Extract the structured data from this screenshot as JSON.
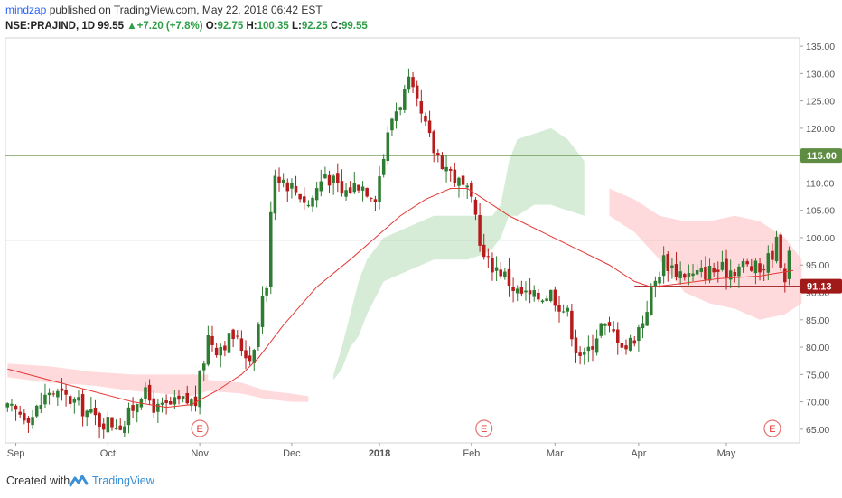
{
  "header": {
    "author": "mindzap",
    "published_text": " published on TradingView.com, May 22, 2018 06:42 EST"
  },
  "quote": {
    "symbol": "NSE:PRAJIND, 1D",
    "last": "99.55",
    "change": "+7.20 (+7.8%)",
    "o_label": "O:",
    "o": "92.75",
    "h_label": "H:",
    "h": "100.35",
    "l_label": "L:",
    "l": "92.25",
    "c_label": "C:",
    "c": "99.55"
  },
  "footer": {
    "created_with": "Created with",
    "brand": "TradingView"
  },
  "colors": {
    "up": "#2e7d32",
    "down": "#b71c1c",
    "ma": "#e53935",
    "cloud_green": "#c8e6c9",
    "cloud_red": "#ffcdd2",
    "level_line": "#5e8c42",
    "price_tag": "#a11a1a"
  },
  "chart_data": {
    "type": "candlestick",
    "y_range": [
      62.5,
      136.5
    ],
    "y_ticks": [
      "135.00",
      "130.00",
      "125.00",
      "120.00",
      "115.00",
      "110.00",
      "105.00",
      "100.00",
      "95.00",
      "90.00",
      "85.00",
      "80.00",
      "75.00",
      "70.00",
      "65.00"
    ],
    "x_labels": [
      {
        "label": "Sep",
        "bar": 2
      },
      {
        "label": "Oct",
        "bar": 24
      },
      {
        "label": "Nov",
        "bar": 46
      },
      {
        "label": "Dec",
        "bar": 68
      },
      {
        "label": "2018",
        "bar": 89
      },
      {
        "label": "Feb",
        "bar": 111
      },
      {
        "label": "Mar",
        "bar": 131
      },
      {
        "label": "Apr",
        "bar": 151
      },
      {
        "label": "May",
        "bar": 172
      }
    ],
    "earnings_marks": [
      {
        "label": "E",
        "bar": 46
      },
      {
        "label": "E",
        "bar": 114
      },
      {
        "label": "E",
        "bar": 183
      }
    ],
    "horizontal_level": {
      "value": 115.0,
      "label": "115.00"
    },
    "last_price_line": {
      "value": 99.55
    },
    "current_tag": {
      "value": 91.13,
      "label": "91.13"
    },
    "anchors": [
      [
        0,
        68.5
      ],
      [
        6,
        67.5
      ],
      [
        10,
        72
      ],
      [
        16,
        70
      ],
      [
        22,
        66.5
      ],
      [
        28,
        66
      ],
      [
        32,
        72
      ],
      [
        36,
        68.5
      ],
      [
        42,
        70
      ],
      [
        45,
        70
      ],
      [
        46,
        74
      ],
      [
        48,
        82
      ],
      [
        50,
        80
      ],
      [
        54,
        82
      ],
      [
        58,
        78
      ],
      [
        60,
        84
      ],
      [
        61,
        90
      ],
      [
        62,
        90
      ],
      [
        63,
        106
      ],
      [
        64,
        112
      ],
      [
        70,
        108
      ],
      [
        72,
        106
      ],
      [
        76,
        112
      ],
      [
        80,
        108
      ],
      [
        84,
        110
      ],
      [
        88,
        108
      ],
      [
        92,
        122
      ],
      [
        96,
        128
      ],
      [
        98,
        124
      ],
      [
        100,
        120
      ],
      [
        102,
        116
      ],
      [
        106,
        112
      ],
      [
        110,
        108
      ],
      [
        112,
        104
      ],
      [
        114,
        96
      ],
      [
        118,
        94
      ],
      [
        122,
        90
      ],
      [
        126,
        89
      ],
      [
        130,
        90
      ],
      [
        134,
        86
      ],
      [
        136,
        80
      ],
      [
        138,
        78
      ],
      [
        142,
        84
      ],
      [
        146,
        82
      ],
      [
        148,
        80
      ],
      [
        150,
        82
      ],
      [
        152,
        85
      ],
      [
        154,
        90
      ],
      [
        157,
        96
      ],
      [
        160,
        94
      ],
      [
        164,
        93
      ],
      [
        168,
        94
      ],
      [
        172,
        94
      ],
      [
        176,
        95
      ],
      [
        180,
        94
      ],
      [
        182,
        96
      ],
      [
        184,
        99
      ],
      [
        186,
        93
      ],
      [
        188,
        99.55
      ]
    ],
    "moving_average": [
      [
        0,
        76
      ],
      [
        10,
        74
      ],
      [
        20,
        72
      ],
      [
        30,
        70
      ],
      [
        38,
        69
      ],
      [
        44,
        69.5
      ],
      [
        50,
        72
      ],
      [
        56,
        75
      ],
      [
        60,
        78
      ],
      [
        66,
        84
      ],
      [
        74,
        91
      ],
      [
        82,
        96
      ],
      [
        88,
        100
      ],
      [
        94,
        104
      ],
      [
        100,
        107
      ],
      [
        106,
        109
      ],
      [
        110,
        109
      ],
      [
        114,
        107
      ],
      [
        120,
        104
      ],
      [
        128,
        101
      ],
      [
        136,
        98
      ],
      [
        144,
        95
      ],
      [
        150,
        92
      ],
      [
        154,
        91
      ],
      [
        160,
        91.5
      ],
      [
        170,
        92.5
      ],
      [
        180,
        93
      ],
      [
        188,
        94
      ]
    ],
    "cloud_bands": [
      {
        "color": "cloud_red",
        "upper": [
          [
            0,
            77
          ],
          [
            10,
            76.5
          ],
          [
            20,
            75.5
          ],
          [
            30,
            75
          ],
          [
            44,
            75
          ],
          [
            48,
            75
          ],
          [
            48,
            75
          ]
        ],
        "lower": [
          [
            0,
            74.5
          ],
          [
            10,
            73.5
          ],
          [
            20,
            73
          ],
          [
            30,
            72
          ],
          [
            44,
            71
          ],
          [
            48,
            72
          ]
        ]
      },
      {
        "color": "cloud_red",
        "upper": [
          [
            48,
            74
          ],
          [
            56,
            73.5
          ],
          [
            62,
            72
          ],
          [
            68,
            71.5
          ],
          [
            72,
            71
          ]
        ],
        "lower": [
          [
            48,
            72
          ],
          [
            56,
            71.5
          ],
          [
            62,
            70.5
          ],
          [
            68,
            70
          ],
          [
            72,
            70
          ]
        ]
      },
      {
        "color": "cloud_green",
        "upper": [
          [
            78,
            75
          ],
          [
            80,
            80
          ],
          [
            82,
            86
          ],
          [
            84,
            92
          ],
          [
            86,
            96
          ],
          [
            90,
            100
          ],
          [
            96,
            102
          ],
          [
            102,
            104
          ],
          [
            106,
            104
          ],
          [
            110,
            104
          ],
          [
            114,
            104
          ],
          [
            116,
            104
          ],
          [
            118,
            106
          ],
          [
            120,
            114
          ],
          [
            122,
            118
          ],
          [
            126,
            119
          ],
          [
            130,
            120
          ],
          [
            134,
            118
          ],
          [
            138,
            114
          ]
        ],
        "lower": [
          [
            78,
            74
          ],
          [
            80,
            76
          ],
          [
            82,
            80
          ],
          [
            84,
            82
          ],
          [
            86,
            86
          ],
          [
            90,
            92
          ],
          [
            96,
            94
          ],
          [
            102,
            96
          ],
          [
            106,
            96
          ],
          [
            110,
            96
          ],
          [
            114,
            97
          ],
          [
            116,
            98
          ],
          [
            118,
            100
          ],
          [
            120,
            104
          ],
          [
            122,
            104
          ],
          [
            126,
            106
          ],
          [
            130,
            106
          ],
          [
            134,
            105
          ],
          [
            138,
            104
          ]
        ]
      },
      {
        "color": "cloud_red",
        "upper": [
          [
            144,
            109
          ],
          [
            150,
            107
          ],
          [
            156,
            104
          ],
          [
            162,
            103
          ],
          [
            168,
            103
          ],
          [
            174,
            104
          ],
          [
            180,
            103
          ],
          [
            186,
            100
          ],
          [
            190,
            96
          ]
        ],
        "lower": [
          [
            144,
            104
          ],
          [
            150,
            101
          ],
          [
            156,
            96
          ],
          [
            162,
            90
          ],
          [
            168,
            88
          ],
          [
            174,
            87
          ],
          [
            180,
            85
          ],
          [
            186,
            86
          ],
          [
            190,
            88
          ]
        ]
      }
    ]
  }
}
